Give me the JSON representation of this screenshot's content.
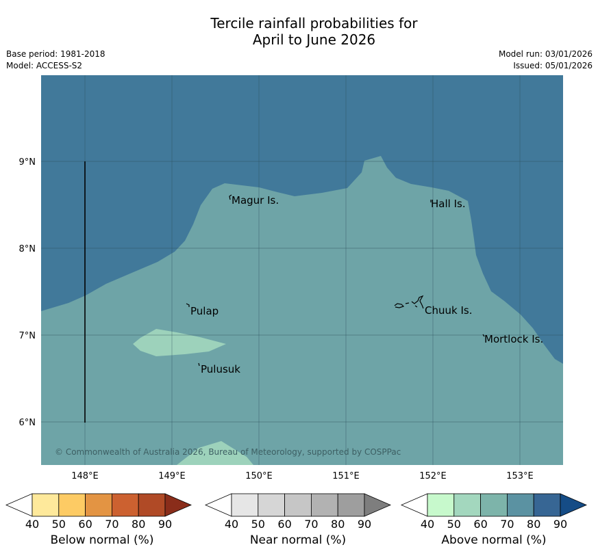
{
  "header": {
    "title_line1": "Tercile rainfall probabilities for",
    "title_line2": "April to June 2026",
    "base_period": "Base period: 1981-2018",
    "model": "Model: ACCESS-S2",
    "model_run": "Model run: 03/01/2026",
    "issued": "Issued: 05/01/2026"
  },
  "map": {
    "lon_labels": [
      "148°E",
      "149°E",
      "150°E",
      "151°E",
      "152°E",
      "153°E"
    ],
    "lat_labels": [
      "9°N",
      "8°N",
      "7°N",
      "6°N"
    ],
    "places": [
      {
        "name": "Magur Is."
      },
      {
        "name": "Hall Is."
      },
      {
        "name": "Pulap"
      },
      {
        "name": "Chuuk Is."
      },
      {
        "name": "Mortlock Is."
      },
      {
        "name": "Pulusuk"
      }
    ],
    "copyright": "© Commonwealth of Australia 2026, Bureau of Meteorology, supported by COSPPac",
    "colors": {
      "above_80": "#41799a",
      "above_70": "#6ea4a7",
      "above_60": "#9dd2bb"
    }
  },
  "colorbars": [
    {
      "label": "Below normal (%)",
      "ticks": [
        "40",
        "50",
        "60",
        "70",
        "80",
        "90"
      ],
      "colors": [
        "#ffffff",
        "#fee99b",
        "#fdcb64",
        "#e39443",
        "#cc6130",
        "#b04a26",
        "#8a2d1a"
      ]
    },
    {
      "label": "Near normal (%)",
      "ticks": [
        "40",
        "50",
        "60",
        "70",
        "80",
        "90"
      ],
      "colors": [
        "#ffffff",
        "#e6e6e6",
        "#d6d6d6",
        "#c6c6c6",
        "#b2b2b2",
        "#9e9e9e",
        "#7e7e7e"
      ]
    },
    {
      "label": "Above normal (%)",
      "ticks": [
        "40",
        "50",
        "60",
        "70",
        "80",
        "90"
      ],
      "colors": [
        "#ffffff",
        "#c7f9cc",
        "#a3d7be",
        "#7db4aa",
        "#5b92a2",
        "#376694",
        "#154c86"
      ]
    }
  ]
}
